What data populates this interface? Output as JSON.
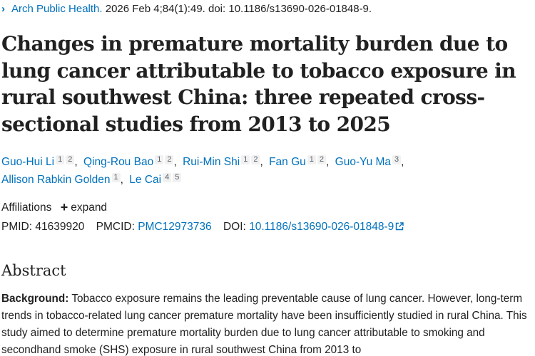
{
  "citation": {
    "journal": "Arch Public Health.",
    "details": " 2026 Feb 4;84(1):49. doi: 10.1186/s13690-026-01848-9."
  },
  "title": "Changes in premature mortality burden due to lung cancer attributable to tobacco exposure in rural southwest China: three repeated cross-sectional studies from 2013 to 2025",
  "authors": [
    {
      "name": "Guo-Hui Li",
      "affs": [
        "1",
        "2"
      ]
    },
    {
      "name": "Qing-Rou Bao",
      "affs": [
        "1",
        "2"
      ]
    },
    {
      "name": "Rui-Min Shi",
      "affs": [
        "1",
        "2"
      ]
    },
    {
      "name": "Fan Gu",
      "affs": [
        "1",
        "2"
      ]
    },
    {
      "name": "Guo-Yu Ma",
      "affs": [
        "3"
      ]
    },
    {
      "name": "Allison Rabkin Golden",
      "affs": [
        "1"
      ]
    },
    {
      "name": "Le Cai",
      "affs": [
        "4",
        "5"
      ]
    }
  ],
  "affiliations": {
    "label": "Affiliations",
    "expand_label": "expand"
  },
  "identifiers": {
    "pmid_label": "PMID:",
    "pmid": "41639920",
    "pmcid_label": "PMCID:",
    "pmcid": "PMC12973736",
    "doi_label": "DOI:",
    "doi": "10.1186/s13690-026-01848-9"
  },
  "abstract": {
    "heading": "Abstract",
    "background_label": "Background:",
    "background_text": " Tobacco exposure remains the leading preventable cause of lung cancer. However, long-term trends in tobacco-related lung cancer premature mortality have been insufficiently studied in rural China. This study aimed to determine premature mortality burden due to lung cancer attributable to smoking and secondhand smoke (SHS) exposure in rural southwest China from 2013 to"
  }
}
